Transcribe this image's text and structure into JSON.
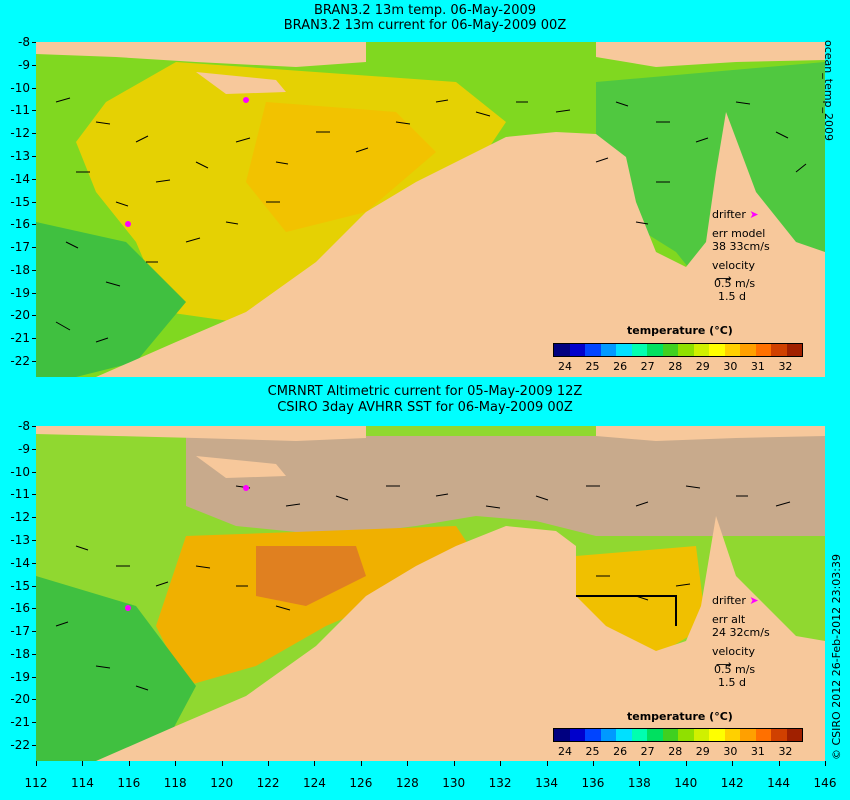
{
  "top": {
    "title1": "BRAN3.2 13m temp. 06-May-2009",
    "title2": "BRAN3.2 13m current for 06-May-2009 00Z",
    "side_label": "ocean_temp_2009",
    "legend": {
      "drifter": "drifter",
      "err_line": "err model",
      "err_value": "38 33cm/s",
      "velocity": "velocity",
      "speed": "0.5 m/s",
      "time": "1.5 d"
    }
  },
  "bottom": {
    "title1": "CMRNRT Altimetric current for 05-May-2009 12Z",
    "title2": "CSIRO 3day AVHRR SST for 06-May-2009 00Z",
    "side_label": "© CSIRO 2012  26-Feb-2012 23:03:39",
    "legend": {
      "drifter": "drifter",
      "err_line": "err alt",
      "err_value": "24 32cm/s",
      "velocity": "velocity",
      "speed": "0.5 m/s",
      "time": "1.5 d"
    }
  },
  "colorbar": {
    "title": "temperature (°C)",
    "ticks": [
      "24",
      "25",
      "26",
      "27",
      "28",
      "29",
      "30",
      "31",
      "32"
    ],
    "colors": [
      "#000080",
      "#0000cc",
      "#0044ff",
      "#0099ff",
      "#00e0ff",
      "#00ffb0",
      "#00e060",
      "#40d020",
      "#90e000",
      "#d0f000",
      "#ffff00",
      "#ffd000",
      "#ffa000",
      "#ff7000",
      "#d04000",
      "#a02000"
    ]
  },
  "y_ticks": [
    "-8",
    "-9",
    "-10",
    "-11",
    "-12",
    "-13",
    "-14",
    "-15",
    "-16",
    "-17",
    "-18",
    "-19",
    "-20",
    "-21",
    "-22"
  ],
  "x_ticks": [
    "112",
    "114",
    "116",
    "118",
    "120",
    "122",
    "124",
    "126",
    "128",
    "130",
    "132",
    "134",
    "136",
    "138",
    "140",
    "142",
    "144",
    "146"
  ],
  "colors": {
    "background": "#00ffff",
    "land": "#f7c89b",
    "cloud": "#c8aa8c",
    "warm": "#f0c000",
    "cool": "#70d000",
    "drifter": "#ff00ff"
  }
}
